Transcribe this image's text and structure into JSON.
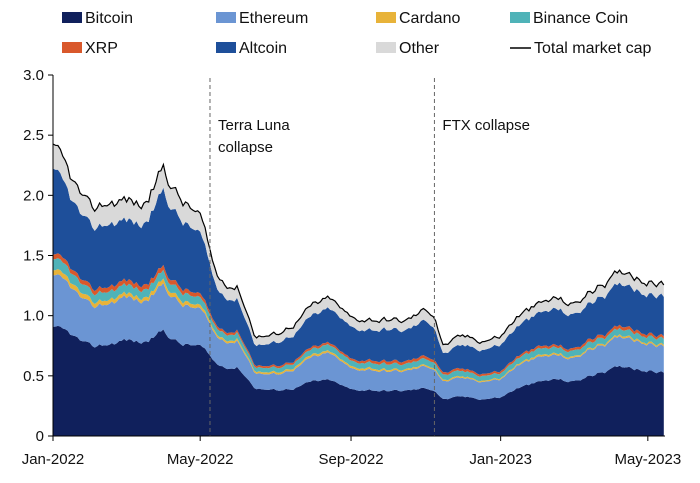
{
  "colors": {
    "bitcoin": "#10205c",
    "ethereum": "#6b95d3",
    "cardano": "#e8b339",
    "binance": "#4fb3b8",
    "xrp": "#d9582b",
    "altcoin": "#1e4f9a",
    "other": "#d9d9d9",
    "total": "#000000"
  },
  "chart_data": {
    "type": "area",
    "stacked": true,
    "yunit": "trillion USD",
    "ylim": [
      0,
      3.0
    ],
    "yticks": [
      0,
      0.5,
      1.0,
      1.5,
      2.0,
      2.5,
      3.0
    ],
    "ytick_labels": [
      "0",
      "0.5",
      "1.0",
      "1.5",
      "2.0",
      "2.5",
      "3.0"
    ],
    "xticks": [
      "2022-01-01",
      "2022-05-01",
      "2022-09-01",
      "2023-01-01",
      "2023-05-01"
    ],
    "xtick_labels": [
      "Jan-2022",
      "May-2022",
      "Sep-2022",
      "Jan-2023",
      "May-2023"
    ],
    "xlim": [
      "2022-01-01",
      "2023-05-15"
    ],
    "legend_position": "top",
    "x": [
      "2022-01-01",
      "2022-01-15",
      "2022-02-01",
      "2022-02-15",
      "2022-03-01",
      "2022-03-15",
      "2022-04-01",
      "2022-04-15",
      "2022-05-01",
      "2022-05-08",
      "2022-05-15",
      "2022-06-01",
      "2022-06-15",
      "2022-07-01",
      "2022-07-15",
      "2022-08-01",
      "2022-08-15",
      "2022-09-01",
      "2022-09-15",
      "2022-10-01",
      "2022-10-15",
      "2022-11-01",
      "2022-11-08",
      "2022-11-15",
      "2022-12-01",
      "2022-12-15",
      "2023-01-01",
      "2023-01-15",
      "2023-02-01",
      "2023-02-15",
      "2023-03-01",
      "2023-03-15",
      "2023-04-01",
      "2023-04-15",
      "2023-05-01",
      "2023-05-10"
    ],
    "series": [
      {
        "name": "Bitcoin",
        "key": "bitcoin",
        "values": [
          0.89,
          0.82,
          0.72,
          0.76,
          0.8,
          0.76,
          0.87,
          0.76,
          0.74,
          0.66,
          0.58,
          0.57,
          0.4,
          0.38,
          0.4,
          0.45,
          0.46,
          0.38,
          0.38,
          0.37,
          0.37,
          0.39,
          0.38,
          0.31,
          0.32,
          0.31,
          0.32,
          0.4,
          0.44,
          0.47,
          0.45,
          0.5,
          0.55,
          0.58,
          0.55,
          0.53
        ]
      },
      {
        "name": "Ethereum",
        "key": "ethereum",
        "values": [
          0.42,
          0.38,
          0.32,
          0.34,
          0.36,
          0.33,
          0.38,
          0.33,
          0.3,
          0.26,
          0.22,
          0.22,
          0.13,
          0.13,
          0.16,
          0.2,
          0.22,
          0.17,
          0.17,
          0.16,
          0.16,
          0.18,
          0.18,
          0.15,
          0.15,
          0.15,
          0.15,
          0.19,
          0.2,
          0.2,
          0.19,
          0.22,
          0.23,
          0.25,
          0.23,
          0.22
        ]
      },
      {
        "name": "Cardano",
        "key": "cardano",
        "values": [
          0.04,
          0.04,
          0.035,
          0.034,
          0.03,
          0.028,
          0.038,
          0.032,
          0.027,
          0.02,
          0.018,
          0.018,
          0.015,
          0.016,
          0.017,
          0.018,
          0.016,
          0.015,
          0.015,
          0.014,
          0.013,
          0.012,
          0.012,
          0.011,
          0.011,
          0.01,
          0.01,
          0.012,
          0.014,
          0.014,
          0.012,
          0.012,
          0.013,
          0.014,
          0.013,
          0.013
        ]
      },
      {
        "name": "Binance Coin",
        "key": "binance",
        "values": [
          0.09,
          0.08,
          0.07,
          0.07,
          0.07,
          0.065,
          0.07,
          0.068,
          0.063,
          0.053,
          0.05,
          0.05,
          0.035,
          0.038,
          0.04,
          0.045,
          0.05,
          0.045,
          0.045,
          0.047,
          0.043,
          0.05,
          0.048,
          0.044,
          0.045,
          0.04,
          0.04,
          0.048,
          0.052,
          0.05,
          0.048,
          0.05,
          0.05,
          0.052,
          0.05,
          0.05
        ]
      },
      {
        "name": "XRP",
        "key": "xrp",
        "values": [
          0.04,
          0.035,
          0.035,
          0.04,
          0.038,
          0.04,
          0.04,
          0.036,
          0.031,
          0.025,
          0.021,
          0.02,
          0.016,
          0.016,
          0.017,
          0.018,
          0.018,
          0.017,
          0.02,
          0.024,
          0.023,
          0.023,
          0.022,
          0.019,
          0.019,
          0.018,
          0.017,
          0.019,
          0.02,
          0.019,
          0.019,
          0.025,
          0.025,
          0.027,
          0.023,
          0.022
        ]
      },
      {
        "name": "Altcoin",
        "key": "altcoin",
        "values": [
          0.7,
          0.56,
          0.49,
          0.52,
          0.5,
          0.49,
          0.63,
          0.56,
          0.5,
          0.4,
          0.3,
          0.26,
          0.17,
          0.19,
          0.22,
          0.26,
          0.28,
          0.26,
          0.25,
          0.26,
          0.25,
          0.29,
          0.27,
          0.16,
          0.19,
          0.2,
          0.22,
          0.25,
          0.27,
          0.3,
          0.28,
          0.3,
          0.33,
          0.35,
          0.33,
          0.33
        ]
      },
      {
        "name": "Other",
        "key": "other",
        "values": [
          0.2,
          0.17,
          0.16,
          0.17,
          0.17,
          0.16,
          0.19,
          0.17,
          0.15,
          0.12,
          0.11,
          0.1,
          0.07,
          0.07,
          0.08,
          0.09,
          0.09,
          0.08,
          0.08,
          0.08,
          0.08,
          0.09,
          0.09,
          0.07,
          0.08,
          0.07,
          0.07,
          0.08,
          0.08,
          0.09,
          0.09,
          0.09,
          0.1,
          0.1,
          0.1,
          0.1
        ]
      }
    ],
    "total": {
      "name": "Total market cap",
      "values": [
        2.38,
        2.13,
        1.84,
        1.94,
        1.97,
        1.91,
        2.23,
        1.96,
        1.82,
        1.54,
        1.31,
        1.25,
        0.84,
        0.84,
        0.93,
        1.08,
        1.13,
        0.97,
        0.98,
        0.97,
        0.95,
        1.05,
        1.02,
        0.76,
        0.82,
        0.8,
        0.83,
        1.0,
        1.08,
        1.14,
        1.09,
        1.2,
        1.3,
        1.38,
        1.3,
        1.27
      ]
    },
    "annotations": [
      {
        "date": "2022-05-09",
        "lines": [
          "Terra Luna",
          "collapse"
        ]
      },
      {
        "date": "2022-11-08",
        "lines": [
          "FTX collapse"
        ]
      }
    ]
  }
}
